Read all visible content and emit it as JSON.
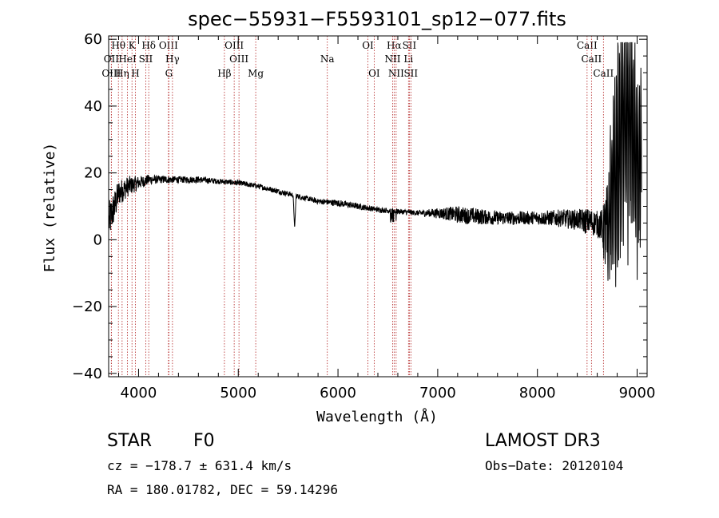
{
  "chart_data": {
    "type": "line",
    "title": "spec−55931−F5593101_sp12−077.fits",
    "xlabel": "Wavelength (Å)",
    "ylabel": "Flux (relative)",
    "xlim": [
      3700,
      9100
    ],
    "ylim": [
      -41,
      61
    ],
    "xticks": [
      4000,
      5000,
      6000,
      7000,
      8000,
      9000
    ],
    "yticks": [
      -40,
      -20,
      0,
      20,
      40,
      60
    ],
    "ytick_labels": [
      "−40",
      "−20",
      "0",
      "20",
      "40",
      "60"
    ],
    "spectrum_anchors": {
      "wavelength": [
        3700,
        3760,
        3800,
        3900,
        4000,
        4100,
        4200,
        4400,
        4600,
        4800,
        5000,
        5200,
        5400,
        5600,
        5800,
        6000,
        6200,
        6400,
        6600,
        6800,
        7000,
        7200,
        7400,
        7600,
        7800,
        8000,
        8200,
        8400,
        8500,
        8600,
        8650,
        8700,
        8750,
        8800,
        8850,
        8900,
        8950,
        9000,
        9050
      ],
      "flux": [
        5,
        10,
        14,
        16,
        17,
        18,
        18,
        18,
        18,
        17.5,
        17,
        16,
        14.5,
        13,
        11.5,
        11,
        10,
        9,
        8.5,
        8,
        8,
        7.5,
        7,
        6.5,
        6.5,
        6.5,
        6.5,
        6,
        5.5,
        5,
        4,
        0,
        15,
        25,
        30,
        35,
        35,
        20,
        25
      ],
      "noise": [
        6,
        5,
        4,
        3,
        2,
        1.5,
        1.2,
        1,
        1,
        0.8,
        0.8,
        0.8,
        0.8,
        0.8,
        0.8,
        1,
        0.9,
        0.8,
        0.8,
        0.8,
        1.5,
        2.5,
        2.5,
        2,
        2,
        2,
        2.5,
        3,
        4,
        4,
        5,
        18,
        25,
        40,
        40,
        40,
        40,
        30,
        30
      ]
    },
    "spectral_lines": [
      {
        "label": "Hθ",
        "wavelength": 3798,
        "row": 0
      },
      {
        "label": "OII",
        "wavelength": 3727,
        "row": 1
      },
      {
        "label": "OIII",
        "wavelength": 3727,
        "row": 2
      },
      {
        "label": "Hη",
        "wavelength": 3835,
        "row": 2
      },
      {
        "label": "HeI",
        "wavelength": 3889,
        "row": 1
      },
      {
        "label": "K",
        "wavelength": 3934,
        "row": 0
      },
      {
        "label": "H",
        "wavelength": 3968,
        "row": 2
      },
      {
        "label": "SII",
        "wavelength": 4072,
        "row": 1
      },
      {
        "label": "Hδ",
        "wavelength": 4102,
        "row": 0
      },
      {
        "label": "OIII",
        "wavelength": 4300,
        "row": 0
      },
      {
        "label": "Hγ",
        "wavelength": 4340,
        "row": 1
      },
      {
        "label": "G",
        "wavelength": 4304,
        "row": 2
      },
      {
        "label": "Hβ",
        "wavelength": 4861,
        "row": 2
      },
      {
        "label": "OIII",
        "wavelength": 4959,
        "row": 0
      },
      {
        "label": "OIII",
        "wavelength": 5007,
        "row": 1
      },
      {
        "label": "Mg",
        "wavelength": 5175,
        "row": 2
      },
      {
        "label": "Na",
        "wavelength": 5893,
        "row": 1
      },
      {
        "label": "OI",
        "wavelength": 6300,
        "row": 0
      },
      {
        "label": "OI",
        "wavelength": 6363,
        "row": 2
      },
      {
        "label": "Hα",
        "wavelength": 6563,
        "row": 0
      },
      {
        "label": "NII",
        "wavelength": 6548,
        "row": 1
      },
      {
        "label": "NII",
        "wavelength": 6583,
        "row": 2
      },
      {
        "label": "SII",
        "wavelength": 6716,
        "row": 0
      },
      {
        "label": "Li",
        "wavelength": 6707,
        "row": 1
      },
      {
        "label": "SII",
        "wavelength": 6731,
        "row": 2
      },
      {
        "label": "CaII",
        "wavelength": 8498,
        "row": 0
      },
      {
        "label": "CaII",
        "wavelength": 8542,
        "row": 1
      },
      {
        "label": "CaII",
        "wavelength": 8662,
        "row": 2
      }
    ]
  },
  "info": {
    "class": "STAR",
    "subclass": "F0",
    "survey": "LAMOST DR3",
    "cz": "cz = −178.7 ± 631.4 km/s",
    "obs_date": "Obs−Date: 20120104",
    "radec": "RA = 180.01782, DEC =  59.14296"
  },
  "colors": {
    "axes": "#000000",
    "spectrum": "#000000",
    "line_markers": "#b22222"
  }
}
